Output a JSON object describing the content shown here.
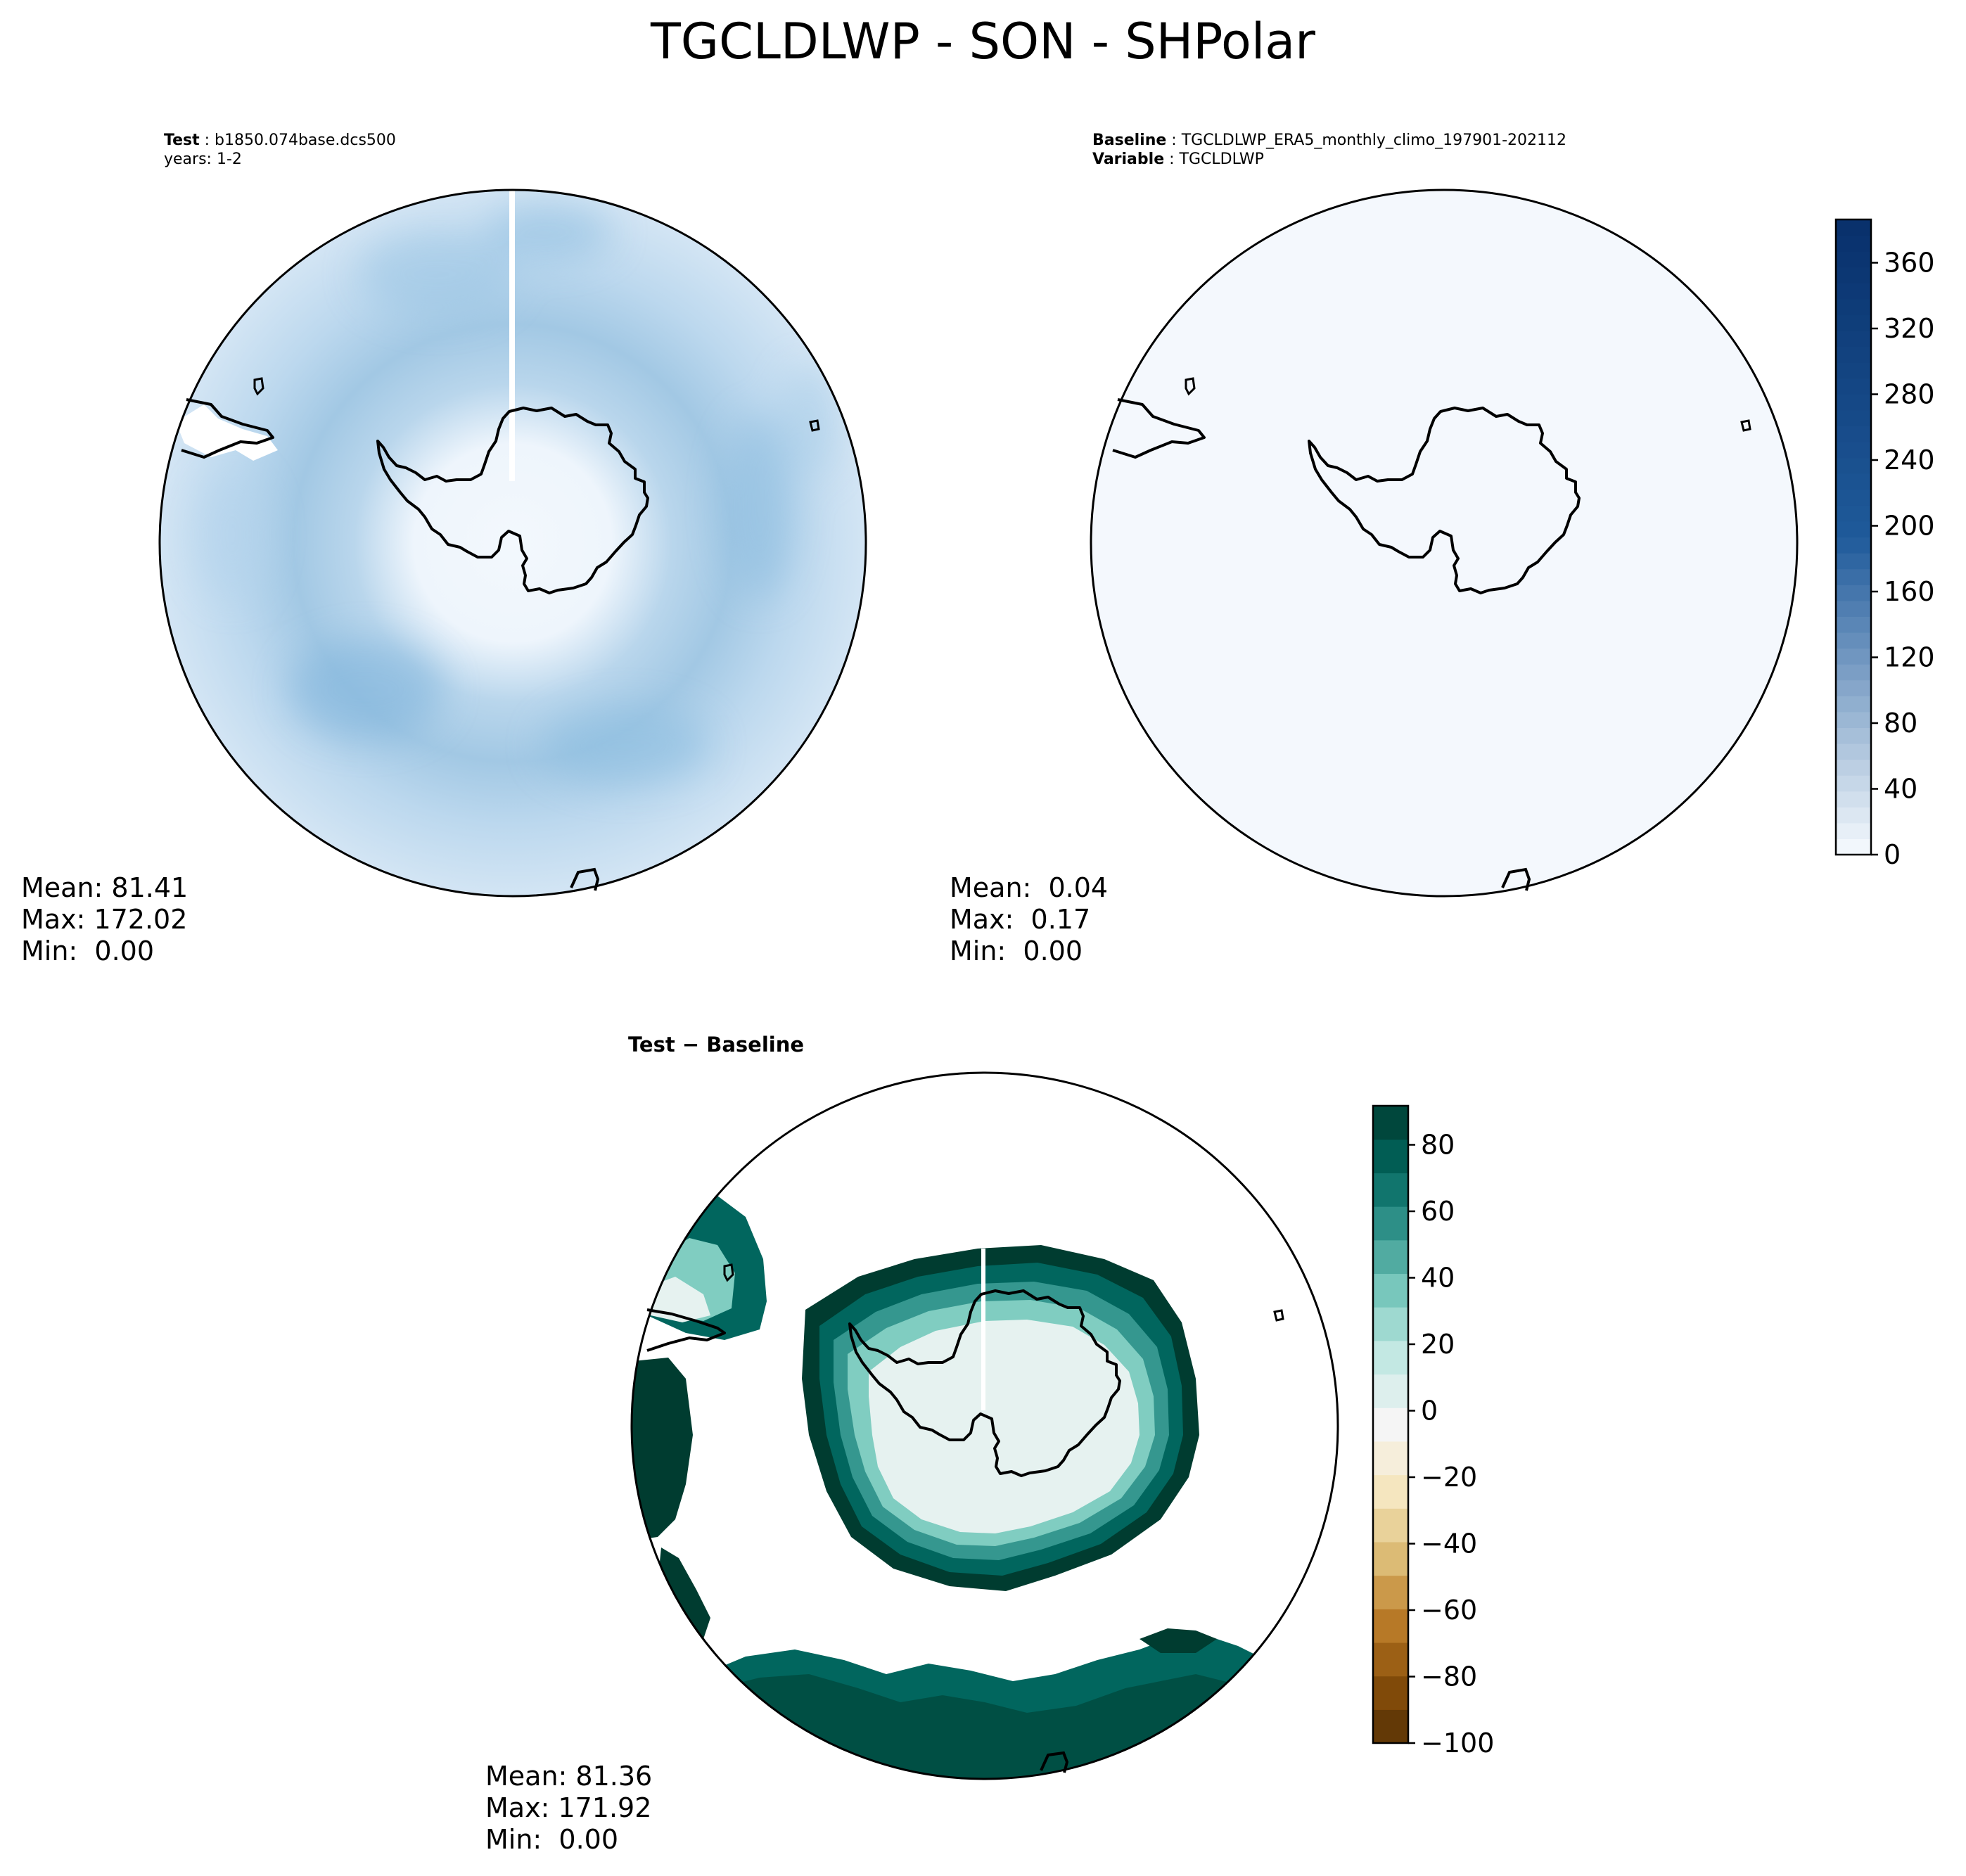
{
  "suptitle": "TGCLDLWP - SON - SHPolar",
  "panels": {
    "test": {
      "header_key": "Test",
      "header_value": "b1850.074base.dcs500",
      "subheader": "years: 1-2",
      "stats": {
        "mean": "Mean: 81.41",
        "max": "Max: 172.02",
        "min": "Min:  0.00"
      }
    },
    "baseline": {
      "header_key": "Baseline",
      "header_value": "TGCLDLWP_ERA5_monthly_climo_197901-202112",
      "subheader_key": "Variable",
      "subheader_value": "TGCLDLWP",
      "stats": {
        "mean": "Mean:  0.04",
        "max": "Max:  0.17",
        "min": "Min:  0.00"
      }
    },
    "diff": {
      "title": "Test − Baseline",
      "stats": {
        "mean": "Mean: 81.36",
        "max": "Max: 171.92",
        "min": "Min:  0.00"
      }
    }
  },
  "colorbars": {
    "main": {
      "ticks": [
        "0",
        "40",
        "80",
        "120",
        "160",
        "200",
        "240",
        "280",
        "320",
        "360"
      ],
      "colors": [
        "#f7fbff",
        "#1f5a9a",
        "#08306b"
      ]
    },
    "diff": {
      "ticks": [
        "−100",
        "−80",
        "−60",
        "−40",
        "−20",
        "0",
        "20",
        "40",
        "60",
        "80"
      ],
      "colors": [
        "#543005",
        "#8c510a",
        "#bf812d",
        "#dfc27d",
        "#f6e8c3",
        "#f5f5f5",
        "#c7eae5",
        "#80cdc1",
        "#35978f",
        "#01665e",
        "#003c30"
      ]
    }
  }
}
